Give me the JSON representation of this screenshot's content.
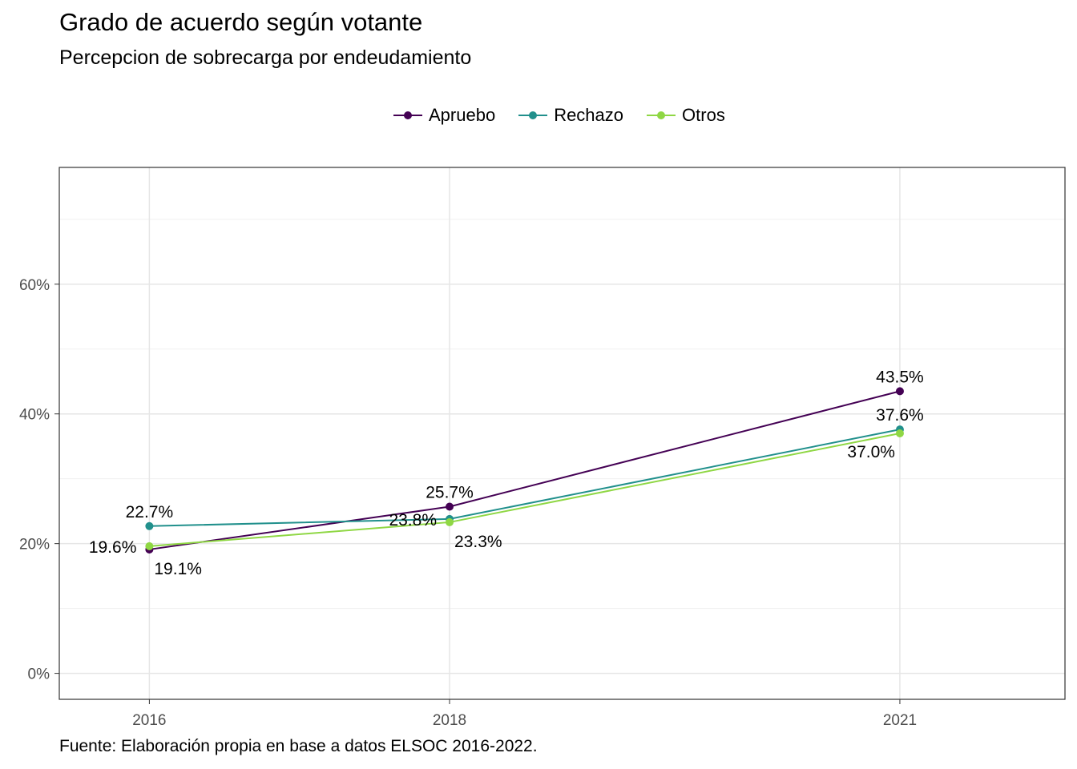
{
  "chart_data": {
    "type": "line",
    "title": "Grado de acuerdo según votante",
    "subtitle": "Percepcion de sobrecarga por endeudamiento",
    "caption": "Fuente: Elaboración propia en base a datos ELSOC 2016-2022.",
    "xlabel": "",
    "ylabel": "",
    "x": [
      "2016",
      "2018",
      "2021"
    ],
    "x_numeric": [
      2016,
      2018,
      2021
    ],
    "xlim": [
      2015.4,
      2022.1
    ],
    "ylim": [
      -4,
      78
    ],
    "yticks": [
      0,
      20,
      40,
      60
    ],
    "ytick_labels": [
      "0%",
      "20%",
      "40%",
      "60%"
    ],
    "grid": true,
    "legend_position": "top",
    "series": [
      {
        "name": "Apruebo",
        "color": "#440154",
        "values": [
          19.1,
          25.7,
          43.5
        ],
        "labels": [
          "19.1%",
          "25.7%",
          "43.5%"
        ],
        "label_pos": [
          "below-right",
          "above",
          "above"
        ]
      },
      {
        "name": "Rechazo",
        "color": "#21908C",
        "values": [
          22.7,
          23.8,
          37.6
        ],
        "labels": [
          "22.7%",
          "23.8%",
          "37.6%"
        ],
        "label_pos": [
          "above",
          "left",
          "above"
        ]
      },
      {
        "name": "Otros",
        "color": "#8FD744",
        "values": [
          19.6,
          23.3,
          37.0
        ],
        "labels": [
          "19.6%",
          "23.3%",
          "37.0%"
        ],
        "label_pos": [
          "left",
          "below-right",
          "below-left"
        ]
      }
    ]
  }
}
